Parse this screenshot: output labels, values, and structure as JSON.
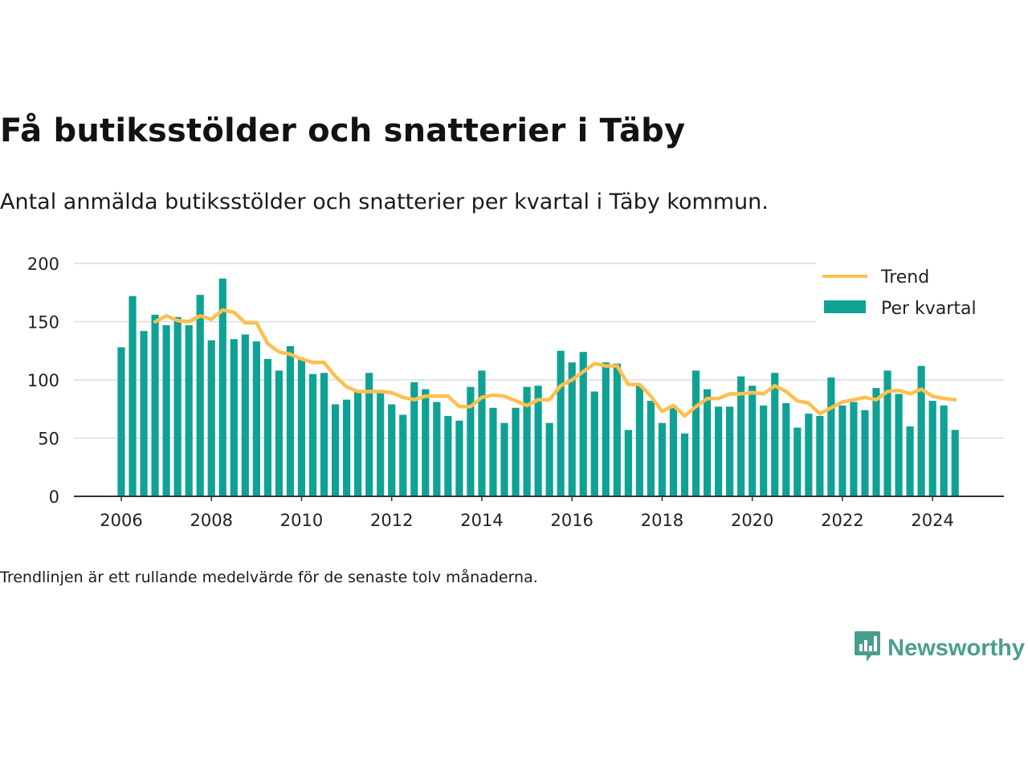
{
  "title": "Få butiksstölder och snatterier i Täby",
  "subtitle": "Antal anmälda butiksstölder och snatterier per kvartal i Täby kommun.",
  "footnote": "Trendlinjen är ett rullande medelvärde för de senaste tolv månaderna.",
  "brand": {
    "name": "Newsworthy",
    "icon": "newsworthy-logo-icon"
  },
  "colors": {
    "bars": "#0fa294",
    "trend": "#fdc04f",
    "grid": "#dcdcdc",
    "axis": "#333333",
    "brand": "#4a9e8e"
  },
  "chart_data": {
    "type": "bar",
    "title": "Få butiksstölder och snatterier i Täby",
    "xlabel": "",
    "ylabel": "",
    "ylim": [
      0,
      200
    ],
    "yticks": [
      0,
      50,
      100,
      150,
      200
    ],
    "xticks": [
      "2006",
      "2008",
      "2010",
      "2012",
      "2014",
      "2016",
      "2018",
      "2020",
      "2022",
      "2024"
    ],
    "grid": true,
    "legend_position": "top-right",
    "categories": [
      "2006 Q1",
      "2006 Q2",
      "2006 Q3",
      "2006 Q4",
      "2007 Q1",
      "2007 Q2",
      "2007 Q3",
      "2007 Q4",
      "2008 Q1",
      "2008 Q2",
      "2008 Q3",
      "2008 Q4",
      "2009 Q1",
      "2009 Q2",
      "2009 Q3",
      "2009 Q4",
      "2010 Q1",
      "2010 Q2",
      "2010 Q3",
      "2010 Q4",
      "2011 Q1",
      "2011 Q2",
      "2011 Q3",
      "2011 Q4",
      "2012 Q1",
      "2012 Q2",
      "2012 Q3",
      "2012 Q4",
      "2013 Q1",
      "2013 Q2",
      "2013 Q3",
      "2013 Q4",
      "2014 Q1",
      "2014 Q2",
      "2014 Q3",
      "2014 Q4",
      "2015 Q1",
      "2015 Q2",
      "2015 Q3",
      "2015 Q4",
      "2016 Q1",
      "2016 Q2",
      "2016 Q3",
      "2016 Q4",
      "2017 Q1",
      "2017 Q2",
      "2017 Q3",
      "2017 Q4",
      "2018 Q1",
      "2018 Q2",
      "2018 Q3",
      "2018 Q4",
      "2019 Q1",
      "2019 Q2",
      "2019 Q3",
      "2019 Q4",
      "2020 Q1",
      "2020 Q2",
      "2020 Q3",
      "2020 Q4",
      "2021 Q1",
      "2021 Q2",
      "2021 Q3",
      "2021 Q4",
      "2022 Q1",
      "2022 Q2",
      "2022 Q3",
      "2022 Q4",
      "2023 Q1",
      "2023 Q2",
      "2023 Q3",
      "2023 Q4",
      "2024 Q1",
      "2024 Q2",
      "2024 Q3"
    ],
    "series": [
      {
        "name": "Per kvartal",
        "type": "bar",
        "values": [
          128,
          172,
          142,
          156,
          147,
          154,
          147,
          173,
          134,
          187,
          135,
          139,
          133,
          118,
          108,
          129,
          118,
          105,
          106,
          79,
          83,
          90,
          106,
          89,
          79,
          70,
          98,
          92,
          81,
          69,
          65,
          94,
          108,
          76,
          63,
          76,
          94,
          95,
          63,
          125,
          115,
          124,
          90,
          115,
          114,
          57,
          95,
          82,
          63,
          78,
          54,
          108,
          92,
          77,
          77,
          103,
          95,
          78,
          106,
          80,
          59,
          71,
          69,
          102,
          78,
          81,
          74,
          93,
          108,
          88,
          60,
          112,
          82,
          78,
          57
        ]
      },
      {
        "name": "Trend",
        "type": "line",
        "values": [
          null,
          null,
          null,
          150,
          155,
          151,
          150,
          155,
          152,
          160,
          158,
          149,
          149,
          131,
          124,
          122,
          118,
          115,
          115,
          103,
          94,
          90,
          90,
          90,
          89,
          85,
          83,
          86,
          86,
          86,
          77,
          77,
          85,
          87,
          86,
          82,
          78,
          83,
          83,
          95,
          100,
          107,
          114,
          112,
          112,
          96,
          96,
          86,
          73,
          78,
          69,
          77,
          84,
          84,
          88,
          88,
          89,
          88,
          95,
          90,
          82,
          80,
          71,
          76,
          81,
          83,
          85,
          83,
          90,
          91,
          88,
          92,
          86,
          84,
          83
        ]
      }
    ]
  }
}
